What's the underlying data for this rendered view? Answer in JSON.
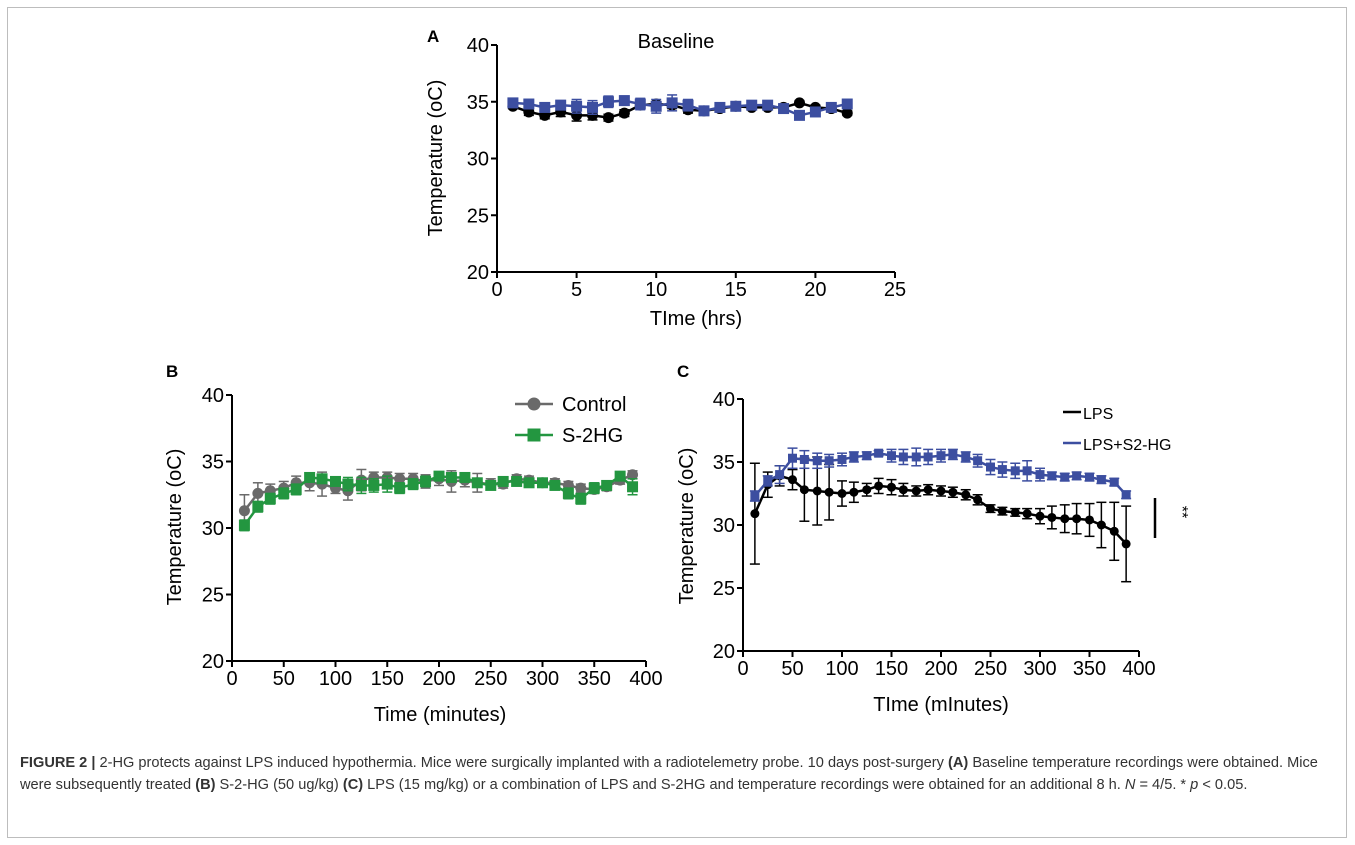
{
  "chart_data": [
    {
      "panel": "A",
      "type": "line",
      "title": "Baseline",
      "xlabel": "TIme (hrs)",
      "ylabel": "Temperature (oC)",
      "xlim": [
        0,
        25
      ],
      "ylim": [
        20,
        40
      ],
      "xticks": [
        "0",
        "5",
        "10",
        "15",
        "20",
        "25"
      ],
      "yticks": [
        "20",
        "25",
        "30",
        "35",
        "40"
      ],
      "series": [
        {
          "color": "#000000",
          "marker": "circle",
          "x": [
            1,
            2,
            3,
            4,
            5,
            6,
            7,
            8,
            9,
            10,
            11,
            12,
            13,
            14,
            15,
            16,
            17,
            18,
            19,
            20,
            21,
            22
          ],
          "y": [
            34.6,
            34.1,
            33.8,
            34.1,
            33.8,
            33.8,
            33.6,
            34.0,
            34.7,
            34.8,
            34.7,
            34.3,
            34.2,
            34.4,
            34.6,
            34.5,
            34.5,
            34.5,
            34.9,
            34.5,
            34.4,
            34.0
          ],
          "err": [
            0.2,
            0.3,
            0.3,
            0.4,
            0.5,
            0.4,
            0.3,
            0.3,
            0.3,
            0.2,
            0.3,
            0.3,
            0.3,
            0.2,
            0.2,
            0.2,
            0.2,
            0.2,
            0.2,
            0.2,
            0.2,
            0.2
          ]
        },
        {
          "color": "#3c4ea0",
          "marker": "square",
          "x": [
            1,
            2,
            3,
            4,
            5,
            6,
            7,
            8,
            9,
            10,
            11,
            12,
            13,
            14,
            15,
            16,
            17,
            18,
            19,
            20,
            21,
            22
          ],
          "y": [
            34.9,
            34.8,
            34.5,
            34.7,
            34.6,
            34.5,
            35.0,
            35.1,
            34.8,
            34.6,
            34.9,
            34.7,
            34.2,
            34.5,
            34.6,
            34.7,
            34.7,
            34.4,
            33.8,
            34.1,
            34.5,
            34.8
          ],
          "err": [
            0.3,
            0.3,
            0.4,
            0.4,
            0.6,
            0.6,
            0.5,
            0.4,
            0.5,
            0.6,
            0.7,
            0.5,
            0.4,
            0.3,
            0.3,
            0.2,
            0.3,
            0.3,
            0.3,
            0.3,
            0.3,
            0.2
          ]
        }
      ]
    },
    {
      "panel": "B",
      "type": "line",
      "xlabel": "Time (minutes)",
      "ylabel": "Temperature (oC)",
      "xlim": [
        0,
        400
      ],
      "ylim": [
        20,
        40
      ],
      "xticks": [
        "0",
        "50",
        "100",
        "150",
        "200",
        "250",
        "300",
        "350",
        "400"
      ],
      "yticks": [
        "20",
        "25",
        "30",
        "35",
        "40"
      ],
      "legend_position": "top-right",
      "series": [
        {
          "name": "Control",
          "color": "#6a6a6a",
          "marker": "circle",
          "x": [
            12,
            25,
            37,
            50,
            62,
            75,
            87,
            100,
            112,
            125,
            137,
            150,
            162,
            175,
            187,
            200,
            212,
            225,
            237,
            250,
            262,
            275,
            287,
            300,
            312,
            325,
            337,
            350,
            362,
            375,
            387
          ],
          "y": [
            31.3,
            32.6,
            32.8,
            33.0,
            33.4,
            33.4,
            33.3,
            33.0,
            32.8,
            33.6,
            33.8,
            33.8,
            33.7,
            33.7,
            33.5,
            33.7,
            33.5,
            33.6,
            33.4,
            33.3,
            33.3,
            33.7,
            33.6,
            33.4,
            33.4,
            33.2,
            33.0,
            32.9,
            33.1,
            33.6,
            34.0
          ],
          "err": [
            1.2,
            0.8,
            0.5,
            0.5,
            0.5,
            0.6,
            0.9,
            0.4,
            0.7,
            0.8,
            0.4,
            0.4,
            0.4,
            0.4,
            0.5,
            0.5,
            0.8,
            0.5,
            0.7,
            0.4,
            0.3,
            0.3,
            0.3,
            0.3,
            0.3,
            0.3,
            0.3,
            0.3,
            0.3,
            0.3,
            0.3
          ]
        },
        {
          "name": "S-2HG",
          "color": "#239640",
          "marker": "square",
          "x": [
            12,
            25,
            37,
            50,
            62,
            75,
            87,
            100,
            112,
            125,
            137,
            150,
            162,
            175,
            187,
            200,
            212,
            225,
            237,
            250,
            262,
            275,
            287,
            300,
            312,
            325,
            337,
            350,
            362,
            375,
            387
          ],
          "y": [
            30.2,
            31.6,
            32.2,
            32.6,
            32.9,
            33.8,
            33.7,
            33.5,
            33.3,
            33.2,
            33.2,
            33.3,
            33.0,
            33.3,
            33.5,
            33.9,
            33.8,
            33.8,
            33.4,
            33.2,
            33.5,
            33.5,
            33.4,
            33.4,
            33.2,
            32.6,
            32.2,
            33.0,
            33.2,
            33.9,
            33.1
          ],
          "err": [
            0.4,
            0.4,
            0.4,
            0.4,
            0.4,
            0.3,
            0.3,
            0.3,
            0.5,
            0.6,
            0.5,
            0.6,
            0.4,
            0.4,
            0.4,
            0.3,
            0.3,
            0.3,
            0.3,
            0.3,
            0.3,
            0.3,
            0.3,
            0.3,
            0.3,
            0.4,
            0.4,
            0.4,
            0.3,
            0.3,
            0.6
          ]
        }
      ]
    },
    {
      "panel": "C",
      "type": "line",
      "xlabel": "TIme (mInutes)",
      "ylabel": "Temperature (oC)",
      "xlim": [
        0,
        400
      ],
      "ylim": [
        20,
        40
      ],
      "xticks": [
        "0",
        "50",
        "100",
        "150",
        "200",
        "250",
        "300",
        "350",
        "400"
      ],
      "yticks": [
        "20",
        "25",
        "30",
        "35",
        "40"
      ],
      "legend_position": "top-right",
      "significance": "**",
      "series": [
        {
          "name": "LPS",
          "color": "#000000",
          "marker": "circle",
          "x": [
            12,
            25,
            37,
            50,
            62,
            75,
            87,
            100,
            112,
            125,
            137,
            150,
            162,
            175,
            187,
            200,
            212,
            225,
            237,
            250,
            262,
            275,
            287,
            300,
            312,
            325,
            337,
            350,
            362,
            375,
            387
          ],
          "y": [
            30.9,
            33.2,
            33.9,
            33.6,
            32.8,
            32.7,
            32.6,
            32.5,
            32.6,
            32.8,
            33.1,
            33.0,
            32.8,
            32.7,
            32.8,
            32.7,
            32.6,
            32.4,
            32.0,
            31.3,
            31.1,
            31.0,
            30.9,
            30.7,
            30.6,
            30.5,
            30.5,
            30.4,
            30.0,
            29.5,
            28.5
          ],
          "err": [
            4.0,
            1.0,
            0.8,
            0.8,
            2.5,
            2.7,
            2.2,
            1.0,
            0.8,
            0.5,
            0.6,
            0.6,
            0.5,
            0.4,
            0.4,
            0.4,
            0.4,
            0.4,
            0.4,
            0.3,
            0.3,
            0.3,
            0.4,
            0.6,
            0.9,
            1.1,
            1.2,
            1.3,
            1.8,
            2.3,
            3.0
          ]
        },
        {
          "name": "LPS+S2-HG",
          "color": "#3c4ea0",
          "marker": "square",
          "x": [
            12,
            25,
            37,
            50,
            62,
            75,
            87,
            100,
            112,
            125,
            137,
            150,
            162,
            175,
            187,
            200,
            212,
            225,
            237,
            250,
            262,
            275,
            287,
            300,
            312,
            325,
            337,
            350,
            362,
            375,
            387
          ],
          "y": [
            32.3,
            33.5,
            34.0,
            35.3,
            35.2,
            35.1,
            35.1,
            35.2,
            35.4,
            35.5,
            35.7,
            35.5,
            35.4,
            35.4,
            35.4,
            35.5,
            35.6,
            35.4,
            35.1,
            34.6,
            34.4,
            34.3,
            34.3,
            34.0,
            33.9,
            33.8,
            33.9,
            33.8,
            33.6,
            33.4,
            32.4
          ],
          "err": [
            0.4,
            0.4,
            0.7,
            0.8,
            0.7,
            0.6,
            0.5,
            0.5,
            0.4,
            0.3,
            0.2,
            0.5,
            0.6,
            0.7,
            0.6,
            0.5,
            0.4,
            0.4,
            0.5,
            0.6,
            0.6,
            0.6,
            0.8,
            0.5,
            0.3,
            0.3,
            0.3,
            0.3,
            0.3,
            0.3,
            0.3
          ]
        }
      ]
    }
  ],
  "caption": {
    "label": "FIGURE 2 |",
    "title": "2-HG protects against LPS induced hypothermia.",
    "seg1": " Mice were surgically implanted with a radiotelemetry probe. 10 days post-surgery ",
    "refA": "(A)",
    "seg2": " Baseline temperature recordings were obtained. Mice were subsequently treated ",
    "refB": "(B)",
    "seg3": " S-2-HG (50 ug/kg) ",
    "refC": "(C)",
    "seg4": " LPS (15 mg/kg) or a combination of LPS and S-2HG and temperature recordings were obtained for an additional 8 h. ",
    "n_sym": "N",
    "seg5": " = 4/5. * ",
    "p_sym": "p",
    "seg6": " < 0.05."
  }
}
